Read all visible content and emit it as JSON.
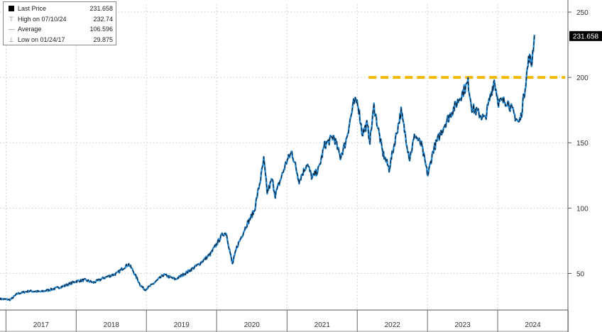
{
  "legend": {
    "items": [
      {
        "label": "Last Price",
        "value": "231.658",
        "symbol": "square-icon"
      },
      {
        "label": "High on 07/10/24",
        "value": "232.74",
        "symbol": "high-tick-icon"
      },
      {
        "label": "Average",
        "value": "106.596",
        "symbol": "average-line-icon"
      },
      {
        "label": "Low on 01/24/17",
        "value": "29.875",
        "symbol": "low-tick-icon"
      }
    ]
  },
  "colors": {
    "line_light": "#2a8fd8",
    "line_dark": "#0b1a2a",
    "reference": "#f5b800",
    "grid": "#c8c8c8",
    "last_price_box": "#000000"
  },
  "chart_data": {
    "type": "line",
    "title": "",
    "xlabel": "",
    "ylabel": "",
    "ylim": [
      22,
      256
    ],
    "xlim": [
      "2016-12-01",
      "2024-12-31"
    ],
    "y_ticks": [
      50,
      100,
      150,
      200,
      250
    ],
    "x_tick_labels": [
      "2017",
      "2018",
      "2019",
      "2020",
      "2021",
      "2022",
      "2023",
      "2024"
    ],
    "x_tick_positions": [
      "2017-01-01",
      "2018-01-01",
      "2019-01-01",
      "2020-01-01",
      "2021-01-01",
      "2022-01-01",
      "2023-01-01",
      "2024-01-01",
      "2025-01-01"
    ],
    "grid": true,
    "y_axis_side": "right",
    "last_price_label": "231.658",
    "reference_line": {
      "y": 200,
      "x_start": "2022-03-01",
      "x_end": "2024-12-31",
      "style": "dashed"
    },
    "series": [
      {
        "points": [
          [
            "2016-12-01",
            30.5
          ],
          [
            "2017-01-24",
            29.9
          ],
          [
            "2017-03-01",
            34.5
          ],
          [
            "2017-05-01",
            36.5
          ],
          [
            "2017-07-01",
            36.0
          ],
          [
            "2017-09-01",
            38.0
          ],
          [
            "2017-11-01",
            40.5
          ],
          [
            "2018-01-01",
            44.0
          ],
          [
            "2018-02-15",
            45.0
          ],
          [
            "2018-04-01",
            43.0
          ],
          [
            "2018-06-01",
            47.0
          ],
          [
            "2018-08-01",
            50.0
          ],
          [
            "2018-09-01",
            54.0
          ],
          [
            "2018-10-01",
            57.0
          ],
          [
            "2018-10-20",
            53.0
          ],
          [
            "2018-12-01",
            41.0
          ],
          [
            "2018-12-24",
            37.5
          ],
          [
            "2019-02-01",
            41.5
          ],
          [
            "2019-04-01",
            49.0
          ],
          [
            "2019-06-01",
            45.5
          ],
          [
            "2019-08-01",
            51.0
          ],
          [
            "2019-10-01",
            57.0
          ],
          [
            "2019-12-01",
            65.0
          ],
          [
            "2020-02-01",
            80.0
          ],
          [
            "2020-02-20",
            81.0
          ],
          [
            "2020-03-23",
            57.0
          ],
          [
            "2020-04-15",
            70.0
          ],
          [
            "2020-06-01",
            86.0
          ],
          [
            "2020-07-15",
            98.0
          ],
          [
            "2020-08-20",
            125.0
          ],
          [
            "2020-09-02",
            137.0
          ],
          [
            "2020-09-20",
            112.0
          ],
          [
            "2020-10-15",
            122.0
          ],
          [
            "2020-11-01",
            110.0
          ],
          [
            "2020-12-01",
            123.0
          ],
          [
            "2020-12-28",
            135.0
          ],
          [
            "2021-01-26",
            143.0
          ],
          [
            "2021-03-05",
            121.0
          ],
          [
            "2021-04-15",
            134.0
          ],
          [
            "2021-05-12",
            123.0
          ],
          [
            "2021-06-15",
            130.0
          ],
          [
            "2021-07-15",
            148.0
          ],
          [
            "2021-09-01",
            155.0
          ],
          [
            "2021-10-05",
            139.0
          ],
          [
            "2021-11-01",
            150.0
          ],
          [
            "2021-12-13",
            180.0
          ],
          [
            "2022-01-03",
            182.0
          ],
          [
            "2022-01-27",
            157.0
          ],
          [
            "2022-02-20",
            164.0
          ],
          [
            "2022-03-08",
            152.0
          ],
          [
            "2022-03-29",
            178.0
          ],
          [
            "2022-05-12",
            143.0
          ],
          [
            "2022-06-16",
            130.0
          ],
          [
            "2022-08-17",
            174.0
          ],
          [
            "2022-09-30",
            138.0
          ],
          [
            "2022-10-28",
            156.0
          ],
          [
            "2022-12-01",
            148.0
          ],
          [
            "2023-01-03",
            125.0
          ],
          [
            "2023-02-01",
            145.0
          ],
          [
            "2023-03-31",
            164.0
          ],
          [
            "2023-06-01",
            180.0
          ],
          [
            "2023-07-31",
            196.0
          ],
          [
            "2023-08-20",
            177.0
          ],
          [
            "2023-10-27",
            168.0
          ],
          [
            "2023-12-14",
            198.0
          ],
          [
            "2024-01-05",
            181.0
          ],
          [
            "2024-02-20",
            182.0
          ],
          [
            "2024-04-19",
            165.0
          ],
          [
            "2024-05-01",
            170.0
          ],
          [
            "2024-05-20",
            190.0
          ],
          [
            "2024-06-12",
            216.0
          ],
          [
            "2024-06-25",
            210.0
          ],
          [
            "2024-07-10",
            232.7
          ]
        ]
      }
    ]
  }
}
